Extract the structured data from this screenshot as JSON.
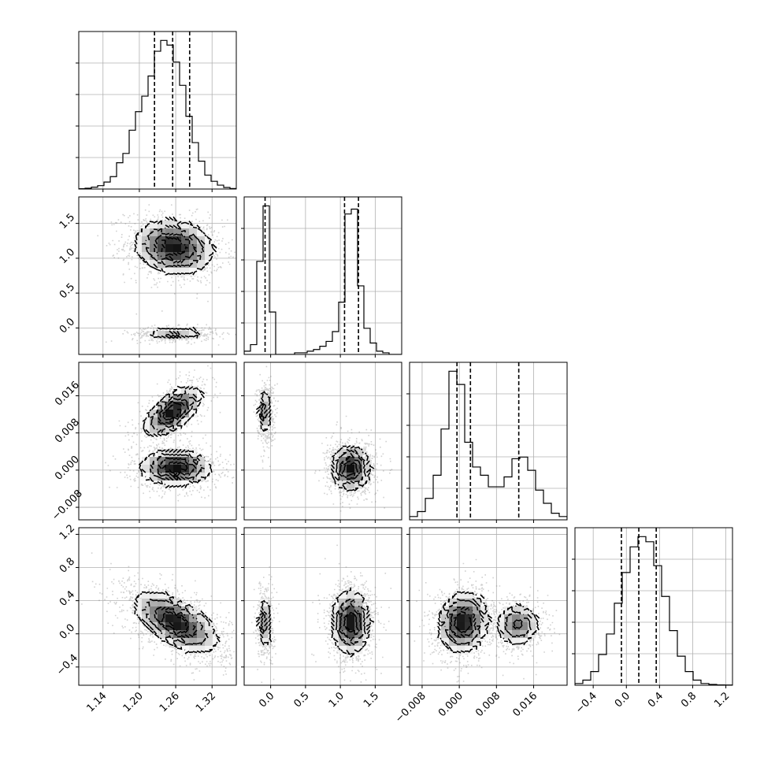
{
  "chart_data": {
    "type": "corner",
    "grid": true,
    "parameters": [
      {
        "range": [
          1.1,
          1.36
        ],
        "ticks": [
          1.14,
          1.2,
          1.26,
          1.32
        ],
        "tick_labels": [
          "1.14",
          "1.20",
          "1.26",
          "1.32"
        ],
        "quantiles": [
          1.225,
          1.255,
          1.283
        ],
        "hist_bins": [
          0.002,
          0.005,
          0.012,
          0.022,
          0.045,
          0.08,
          0.17,
          0.23,
          0.38,
          0.5,
          0.6,
          0.73,
          0.89,
          0.96,
          0.93,
          0.82,
          0.67,
          0.47,
          0.3,
          0.18,
          0.09,
          0.05,
          0.025,
          0.01,
          0.003
        ]
      },
      {
        "range": [
          -0.38,
          1.88
        ],
        "ticks": [
          0.0,
          0.5,
          1.0,
          1.5
        ],
        "tick_labels": [
          "0.0",
          "0.5",
          "1.0",
          "1.5"
        ],
        "quantiles": [
          -0.08,
          1.06,
          1.26
        ],
        "hist_bins": [
          0.02,
          0.06,
          0.57,
          0.91,
          0.26,
          0.0,
          0.0,
          0.0,
          0.01,
          0.01,
          0.02,
          0.03,
          0.05,
          0.08,
          0.14,
          0.32,
          0.86,
          0.89,
          0.42,
          0.16,
          0.07,
          0.02,
          0.01,
          0.0,
          0.0
        ]
      },
      {
        "range": [
          -0.0107,
          0.0232
        ],
        "ticks": [
          -0.008,
          0.0,
          0.008,
          0.016
        ],
        "tick_labels": [
          "−0.008",
          "0.000",
          "0.008",
          "0.016"
        ],
        "quantiles": [
          -0.0005,
          0.0024,
          0.0128
        ],
        "hist_bins": [
          0.02,
          0.05,
          0.13,
          0.27,
          0.55,
          0.9,
          0.82,
          0.47,
          0.32,
          0.27,
          0.2,
          0.2,
          0.26,
          0.37,
          0.38,
          0.3,
          0.18,
          0.1,
          0.04,
          0.02
        ]
      },
      {
        "range": [
          -0.62,
          1.28
        ],
        "ticks": [
          -0.4,
          0.0,
          0.4,
          0.8,
          1.2
        ],
        "tick_labels": [
          "−0.4",
          "0.0",
          "0.4",
          "0.8",
          "1.2"
        ],
        "quantiles": [
          -0.06,
          0.15,
          0.36
        ],
        "hist_bins": [
          0.01,
          0.03,
          0.08,
          0.18,
          0.3,
          0.48,
          0.66,
          0.81,
          0.87,
          0.84,
          0.7,
          0.52,
          0.32,
          0.17,
          0.08,
          0.03,
          0.01,
          0.005,
          0.002,
          0.001
        ]
      }
    ],
    "joint_distributions": [
      {
        "x": 0,
        "y": 1,
        "modes": [
          {
            "mx": 1.257,
            "my": 1.16,
            "sx": 0.03,
            "sy": 0.18,
            "rho": -0.15,
            "w": 0.74
          },
          {
            "mx": 1.257,
            "my": -0.08,
            "sx": 0.026,
            "sy": 0.04,
            "rho": 0.0,
            "w": 0.26
          }
        ]
      },
      {
        "x": 0,
        "y": 2,
        "modes": [
          {
            "mx": 1.26,
            "my": 0.0006,
            "sx": 0.027,
            "sy": 0.0018,
            "rho": 0.0,
            "w": 0.56
          },
          {
            "mx": 1.255,
            "my": 0.0126,
            "sx": 0.022,
            "sy": 0.0025,
            "rho": 0.62,
            "w": 0.44
          }
        ]
      },
      {
        "x": 0,
        "y": 3,
        "modes": [
          {
            "mx": 1.26,
            "my": 0.14,
            "sx": 0.032,
            "sy": 0.17,
            "rho": -0.6,
            "w": 1.0
          }
        ]
      },
      {
        "x": 1,
        "y": 2,
        "modes": [
          {
            "mx": -0.08,
            "my": 0.0125,
            "sx": 0.045,
            "sy": 0.0025,
            "rho": 0.0,
            "w": 0.3
          },
          {
            "mx": 1.15,
            "my": 0.0005,
            "sx": 0.13,
            "sy": 0.0022,
            "rho": 0.0,
            "w": 0.7
          }
        ]
      },
      {
        "x": 1,
        "y": 3,
        "modes": [
          {
            "mx": -0.08,
            "my": 0.13,
            "sx": 0.045,
            "sy": 0.16,
            "rho": 0.0,
            "w": 0.3
          },
          {
            "mx": 1.15,
            "my": 0.14,
            "sx": 0.13,
            "sy": 0.18,
            "rho": 0.0,
            "w": 0.7
          }
        ]
      },
      {
        "x": 2,
        "y": 3,
        "modes": [
          {
            "mx": 0.0008,
            "my": 0.14,
            "sx": 0.0025,
            "sy": 0.17,
            "rho": 0.1,
            "w": 0.62
          },
          {
            "mx": 0.0125,
            "my": 0.11,
            "sx": 0.0022,
            "sy": 0.12,
            "rho": 0.0,
            "w": 0.38
          }
        ]
      }
    ]
  }
}
